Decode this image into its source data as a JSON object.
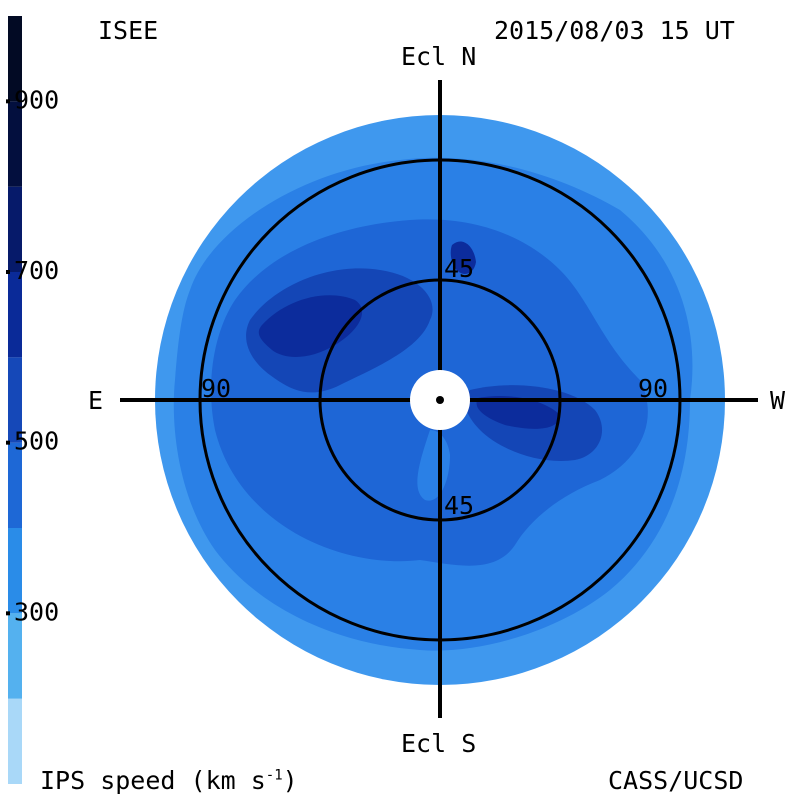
{
  "header": {
    "institute": "ISEE",
    "datetime": "2015/08/03 15 UT"
  },
  "footer": {
    "quantity_label": "IPS speed (km s",
    "quantity_exponent": "-1",
    "quantity_close": ")",
    "credit": "CASS/UCSD"
  },
  "colorbar": {
    "levels": [
      {
        "from": 100,
        "to": 200,
        "color": "#a9d8f8"
      },
      {
        "from": 200,
        "to": 300,
        "color": "#54b1ef"
      },
      {
        "from": 300,
        "to": 400,
        "color": "#2a8ce8"
      },
      {
        "from": 400,
        "to": 500,
        "color": "#1e68d6"
      },
      {
        "from": 500,
        "to": 600,
        "color": "#1548b8"
      },
      {
        "from": 600,
        "to": 700,
        "color": "#0a2a98"
      },
      {
        "from": 700,
        "to": 800,
        "color": "#061a6a"
      },
      {
        "from": 800,
        "to": 900,
        "color": "#030f3e"
      },
      {
        "from": 900,
        "to": 1000,
        "color": "#020a24"
      }
    ],
    "tick_labels": [
      "900",
      "700",
      "500",
      "300"
    ]
  },
  "map": {
    "directions": {
      "north": "Ecl N",
      "south": "Ecl S",
      "east": "E",
      "west": "W"
    },
    "elongation_labels": {
      "inner_top": "45",
      "inner_bottom": "45",
      "outer_left": "90",
      "outer_right": "90"
    },
    "colors": {
      "outer_ring": "#3f98ee",
      "mid_field": "#2a80e6",
      "inner_field": "#1e66d6",
      "fast_region": "#1446b6",
      "fastest_region": "#0c2c9c",
      "sun_disk": "#ffffff",
      "axis_lines": "#000000"
    }
  }
}
